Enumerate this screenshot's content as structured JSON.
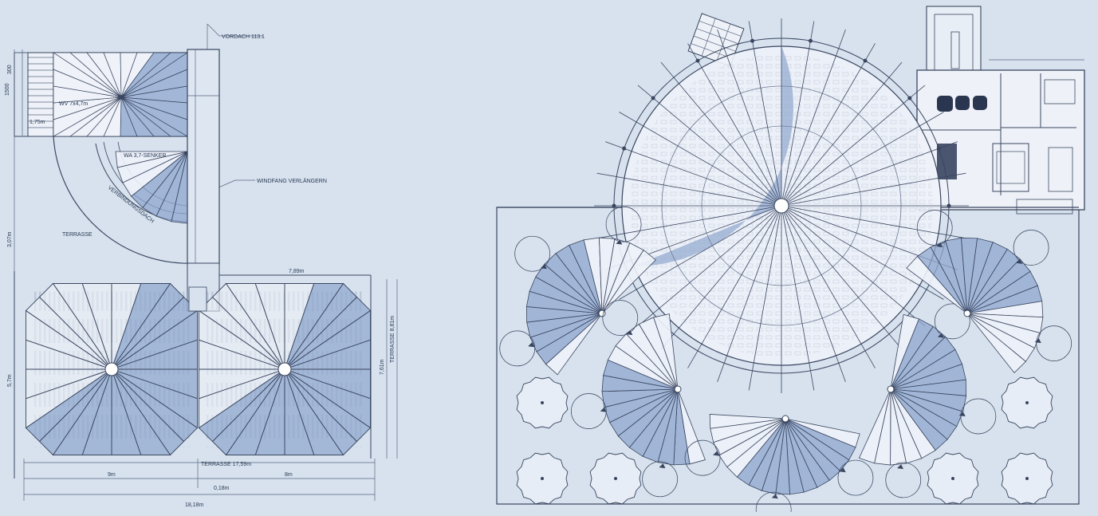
{
  "colors": {
    "background": "#d7e2ee",
    "roof_shade": "#8fa7cf",
    "roof_light": "#eef2f8",
    "line": "#3a4660"
  },
  "left_plan": {
    "labels": {
      "vordach": "VORDACH 113.1",
      "upper_tent": "WV 7x4,7m",
      "small_tent": "WA 3,7-SENKER",
      "connector": "VERBINDUNGSDACH",
      "windfang": "WINDFANG VERLÄNGERN",
      "terrasse": "TERRASSE",
      "terrasse_bottom": "TERRASSE 17,59m",
      "width_top": "7,89m",
      "stair_width": "1,75m"
    },
    "dimensions": {
      "top_1": "300",
      "top_2": "1500",
      "left_upper": "3,07m",
      "left_lower": "5,7m",
      "right_1": "7,61m",
      "right_2": "TERRASSE 8,81m",
      "bottom_left": "9m",
      "bottom_right": "8m",
      "bottom_gap": "0,18m",
      "bottom_total": "18,18m"
    }
  }
}
